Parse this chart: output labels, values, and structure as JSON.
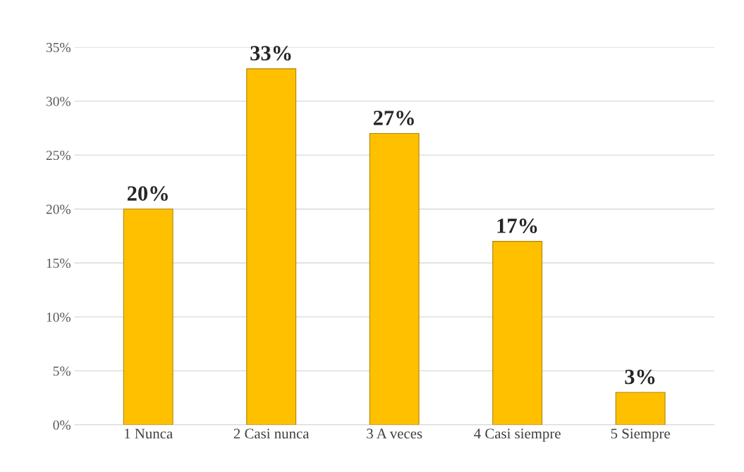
{
  "chart_data": {
    "type": "bar",
    "categories": [
      "1 Nunca",
      "2 Casi nunca",
      "3 A veces",
      "4 Casi siempre",
      "5 Siempre"
    ],
    "values": [
      20,
      33,
      27,
      17,
      3
    ],
    "value_labels": [
      "20%",
      "33%",
      "27%",
      "17%",
      "3%"
    ],
    "color": "#ffc000",
    "ylim": [
      0,
      35
    ],
    "yticks": [
      {
        "value": 0,
        "label": "0%"
      },
      {
        "value": 5,
        "label": "5%"
      },
      {
        "value": 10,
        "label": "10%"
      },
      {
        "value": 15,
        "label": "15%"
      },
      {
        "value": 20,
        "label": "20%"
      },
      {
        "value": 25,
        "label": "25%"
      },
      {
        "value": 30,
        "label": "30%"
      },
      {
        "value": 35,
        "label": "35%"
      }
    ],
    "grid": "y"
  }
}
